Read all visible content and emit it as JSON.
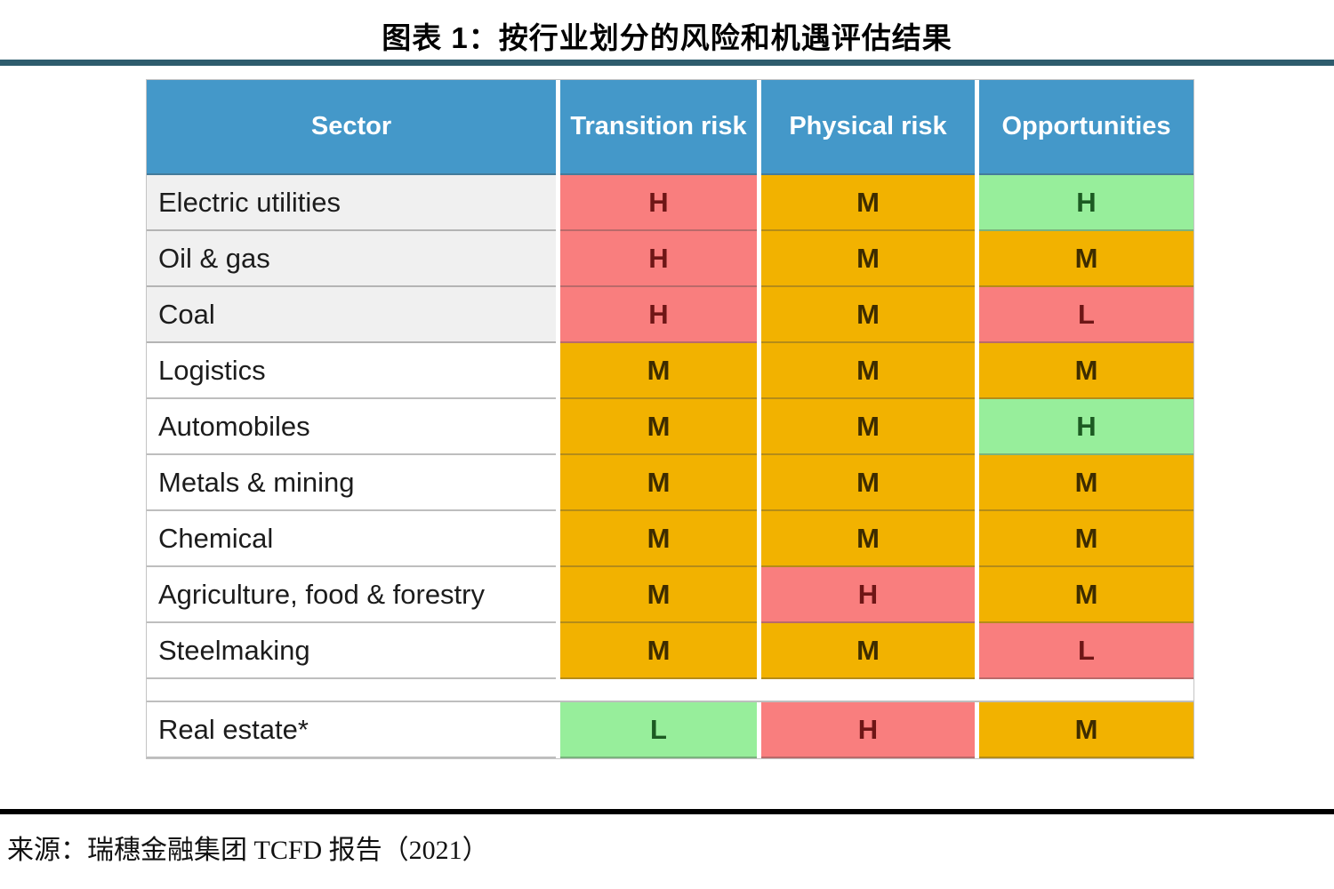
{
  "title": "图表 1：按行业划分的风险和机遇评估结果",
  "source_note": "来源：瑞穗金融集团 TCFD 报告（2021）",
  "palette": {
    "header_bg": "#4498C9",
    "header_text": "#FFFFFF",
    "red_bg": "#F97E7E",
    "red_text": "#6E1616",
    "orange_bg": "#F2B200",
    "orange_text": "#3E2C00",
    "green_bg": "#97EE9B",
    "green_text": "#1C5A22",
    "shaded_row_bg": "#F0F0F0",
    "top_rule": "#2E5C6D",
    "bottom_rule": "#000000"
  },
  "table": {
    "columns": [
      "Sector",
      "Transition risk",
      "Physical risk",
      "Opportunities"
    ],
    "rows": [
      {
        "sector": "Electric utilities",
        "shaded": true,
        "ratings": [
          {
            "value": "H",
            "color": "red"
          },
          {
            "value": "M",
            "color": "orange"
          },
          {
            "value": "H",
            "color": "green"
          }
        ]
      },
      {
        "sector": "Oil & gas",
        "shaded": true,
        "ratings": [
          {
            "value": "H",
            "color": "red"
          },
          {
            "value": "M",
            "color": "orange"
          },
          {
            "value": "M",
            "color": "orange"
          }
        ]
      },
      {
        "sector": "Coal",
        "shaded": true,
        "ratings": [
          {
            "value": "H",
            "color": "red"
          },
          {
            "value": "M",
            "color": "orange"
          },
          {
            "value": "L",
            "color": "red"
          }
        ]
      },
      {
        "sector": "Logistics",
        "shaded": false,
        "ratings": [
          {
            "value": "M",
            "color": "orange"
          },
          {
            "value": "M",
            "color": "orange"
          },
          {
            "value": "M",
            "color": "orange"
          }
        ]
      },
      {
        "sector": "Automobiles",
        "shaded": false,
        "ratings": [
          {
            "value": "M",
            "color": "orange"
          },
          {
            "value": "M",
            "color": "orange"
          },
          {
            "value": "H",
            "color": "green"
          }
        ]
      },
      {
        "sector": "Metals & mining",
        "shaded": false,
        "ratings": [
          {
            "value": "M",
            "color": "orange"
          },
          {
            "value": "M",
            "color": "orange"
          },
          {
            "value": "M",
            "color": "orange"
          }
        ]
      },
      {
        "sector": "Chemical",
        "shaded": false,
        "ratings": [
          {
            "value": "M",
            "color": "orange"
          },
          {
            "value": "M",
            "color": "orange"
          },
          {
            "value": "M",
            "color": "orange"
          }
        ]
      },
      {
        "sector": "Agriculture, food & forestry",
        "shaded": false,
        "ratings": [
          {
            "value": "M",
            "color": "orange"
          },
          {
            "value": "H",
            "color": "red"
          },
          {
            "value": "M",
            "color": "orange"
          }
        ]
      },
      {
        "sector": "Steelmaking",
        "shaded": false,
        "ratings": [
          {
            "value": "M",
            "color": "orange"
          },
          {
            "value": "M",
            "color": "orange"
          },
          {
            "value": "L",
            "color": "red"
          }
        ]
      },
      {
        "type": "spacer"
      },
      {
        "sector": "Real estate*",
        "shaded": false,
        "ratings": [
          {
            "value": "L",
            "color": "green"
          },
          {
            "value": "H",
            "color": "red"
          },
          {
            "value": "M",
            "color": "orange"
          }
        ]
      }
    ]
  }
}
